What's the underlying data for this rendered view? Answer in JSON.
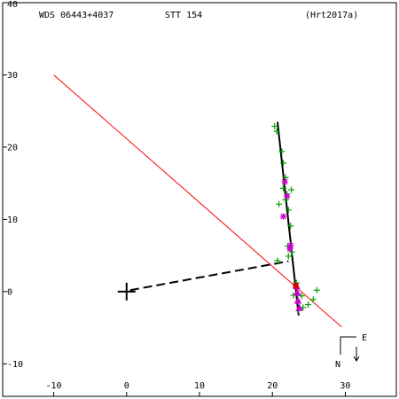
{
  "header": {
    "left": "WDS 06443+4037",
    "center": "STT 154",
    "right": "(Hrt2017a)"
  },
  "compass": {
    "east_label": "E",
    "north_label": "N"
  },
  "chart_data": {
    "type": "scatter",
    "title": "",
    "xlabel": "",
    "ylabel": "",
    "xlim": [
      -17,
      37
    ],
    "ylim": [
      -14.5,
      40
    ],
    "x_inverted": false,
    "x_ticks": [
      -10,
      0,
      10,
      20,
      30
    ],
    "y_ticks": [
      -10,
      0,
      10,
      20,
      30
    ],
    "x_tick_labels": [
      "-10",
      "0",
      "10",
      "20",
      "30"
    ],
    "y_tick_labels": [
      "-10",
      "0",
      "10",
      "20",
      "30"
    ],
    "y_top_label": "40",
    "grid": false,
    "primary_star": {
      "x": 0,
      "y": 0,
      "marker": "cross",
      "color": "#000000"
    },
    "orbit_line": {
      "color": "#000000",
      "points": [
        [
          20.7,
          23.5
        ],
        [
          23.6,
          -3.3
        ]
      ]
    },
    "line_of_nodes": {
      "color": "#ff0000",
      "points": [
        [
          -10,
          30
        ],
        [
          29.5,
          -4.9
        ]
      ]
    },
    "periastron_line": {
      "color": "#000000",
      "style": "dashed",
      "points": [
        [
          0.5,
          0.2
        ],
        [
          22.2,
          4.2
        ]
      ]
    },
    "series": [
      {
        "marker": "plus",
        "color": "#00a000",
        "points": [
          [
            20.3,
            22.9
          ],
          [
            20.6,
            22.2
          ],
          [
            21.3,
            19.4
          ],
          [
            21.5,
            17.8
          ],
          [
            21.8,
            15.8
          ],
          [
            21.5,
            14.3
          ],
          [
            22.0,
            13.5
          ],
          [
            22.6,
            14.1
          ],
          [
            21.8,
            12.7
          ],
          [
            20.9,
            12.1
          ],
          [
            22.2,
            11.3
          ],
          [
            22.5,
            9.1
          ],
          [
            22.1,
            6.3
          ],
          [
            22.2,
            4.9
          ],
          [
            20.7,
            4.3
          ],
          [
            22.7,
            5.5
          ],
          [
            23.3,
            1.2
          ],
          [
            24.0,
            -0.6
          ],
          [
            24.9,
            -1.8
          ],
          [
            24.2,
            -2.2
          ],
          [
            25.6,
            -1.1
          ],
          [
            26.1,
            0.2
          ],
          [
            22.9,
            -0.5
          ],
          [
            23.6,
            -2.6
          ]
        ]
      },
      {
        "marker": "asterisk",
        "color": "#cc00cc",
        "points": [
          [
            21.7,
            15.2
          ],
          [
            22.0,
            13.2
          ],
          [
            21.5,
            10.4
          ],
          [
            22.5,
            6.4
          ],
          [
            22.4,
            5.9
          ]
        ]
      },
      {
        "marker": "triangle",
        "color": "#cc00cc",
        "points": [
          [
            23.3,
            0.7
          ],
          [
            23.4,
            -0.2
          ],
          [
            23.5,
            -1.3
          ],
          [
            23.7,
            -2.3
          ]
        ]
      },
      {
        "marker": "square",
        "color": "#dd0000",
        "points": [
          [
            23.2,
            0.8
          ]
        ]
      }
    ]
  }
}
